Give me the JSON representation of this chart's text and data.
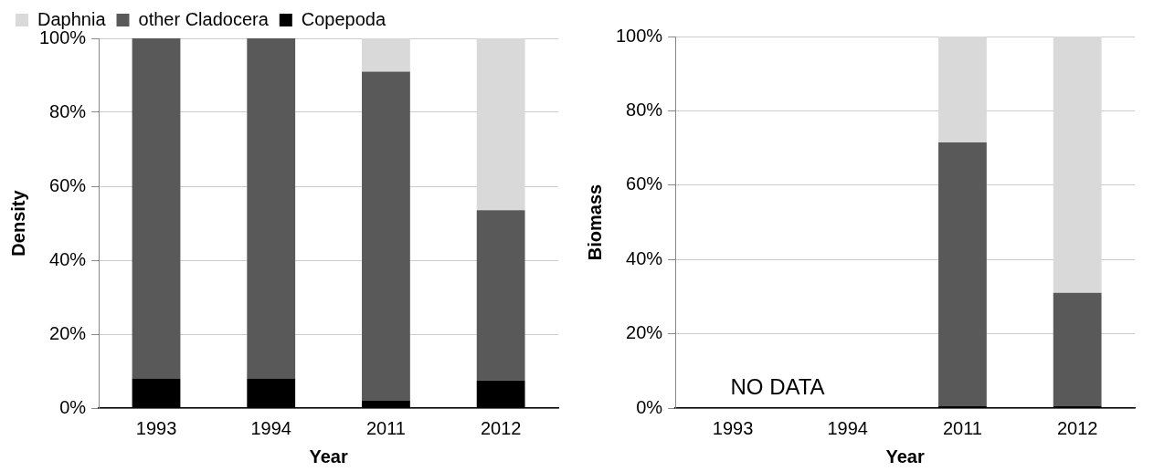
{
  "chart_data": [
    {
      "type": "bar",
      "stacked": true,
      "xlabel": "Year",
      "ylabel": "Density",
      "categories": [
        "1993",
        "1994",
        "2011",
        "2012"
      ],
      "ylim": [
        0,
        100
      ],
      "yticks": [
        {
          "value": 0,
          "label": "0%"
        },
        {
          "value": 20,
          "label": "20%"
        },
        {
          "value": 40,
          "label": "40%"
        },
        {
          "value": 60,
          "label": "60%"
        },
        {
          "value": 80,
          "label": "80%"
        },
        {
          "value": 100,
          "label": "100%"
        }
      ],
      "grid": "y",
      "legend": "top left",
      "series": [
        {
          "name": "Copepoda",
          "color": "#000000",
          "values": [
            8,
            8,
            2,
            7.5
          ]
        },
        {
          "name": "other Cladocera",
          "color": "#595959",
          "values": [
            92,
            92,
            89,
            46
          ]
        },
        {
          "name": "Daphnia",
          "color": "#d9d9d9",
          "values": [
            0,
            0,
            9,
            46.5
          ]
        }
      ]
    },
    {
      "type": "bar",
      "stacked": true,
      "xlabel": "Year",
      "ylabel": "Biomass",
      "categories": [
        "1993",
        "1994",
        "2011",
        "2012"
      ],
      "ylim": [
        0,
        100
      ],
      "yticks": [
        {
          "value": 0,
          "label": "0%"
        },
        {
          "value": 20,
          "label": "20%"
        },
        {
          "value": 40,
          "label": "40%"
        },
        {
          "value": 60,
          "label": "60%"
        },
        {
          "value": 80,
          "label": "80%"
        },
        {
          "value": 100,
          "label": "100%"
        }
      ],
      "grid": "y",
      "annotations": [
        "NO DATA"
      ],
      "series": [
        {
          "color": "#000000",
          "values": [
            null,
            null,
            0.5,
            0.5
          ]
        },
        {
          "color": "#595959",
          "values": [
            null,
            null,
            71,
            30.5
          ]
        },
        {
          "color": "#d9d9d9",
          "values": [
            null,
            null,
            28.5,
            69
          ]
        }
      ]
    }
  ]
}
